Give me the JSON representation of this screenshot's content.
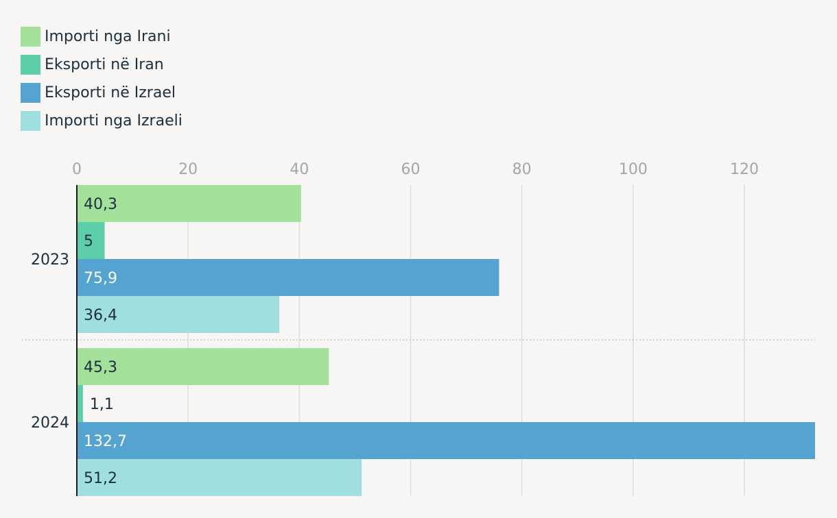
{
  "chart_data": {
    "type": "bar",
    "orientation": "horizontal",
    "categories": [
      "2023",
      "2024"
    ],
    "series": [
      {
        "name": "Importi nga Irani",
        "values": [
          40.3,
          45.3
        ],
        "labels": [
          "40,3",
          "45,3"
        ],
        "color": "#a3e09a",
        "label_color": "#1b2f3e"
      },
      {
        "name": "Eksporti në Iran",
        "values": [
          5,
          1.1
        ],
        "labels": [
          "5",
          "1,1"
        ],
        "color": "#5cceaa",
        "label_color": "#1b2f3e"
      },
      {
        "name": "Eksporti në Izrael",
        "values": [
          75.9,
          132.7
        ],
        "labels": [
          "75,9",
          "132,7"
        ],
        "color": "#55a3d0",
        "label_color": "#ffffff"
      },
      {
        "name": "Importi nga Izraeli",
        "values": [
          36.4,
          51.2
        ],
        "labels": [
          "36,4",
          "51,2"
        ],
        "color": "#a0dfe0",
        "label_color": "#1b2f3e"
      }
    ],
    "x_ticks": [
      "0",
      "20",
      "40",
      "60",
      "80",
      "100",
      "120"
    ],
    "xlim": [
      0,
      132.7
    ],
    "grid": true,
    "legend_position": "top-left"
  }
}
